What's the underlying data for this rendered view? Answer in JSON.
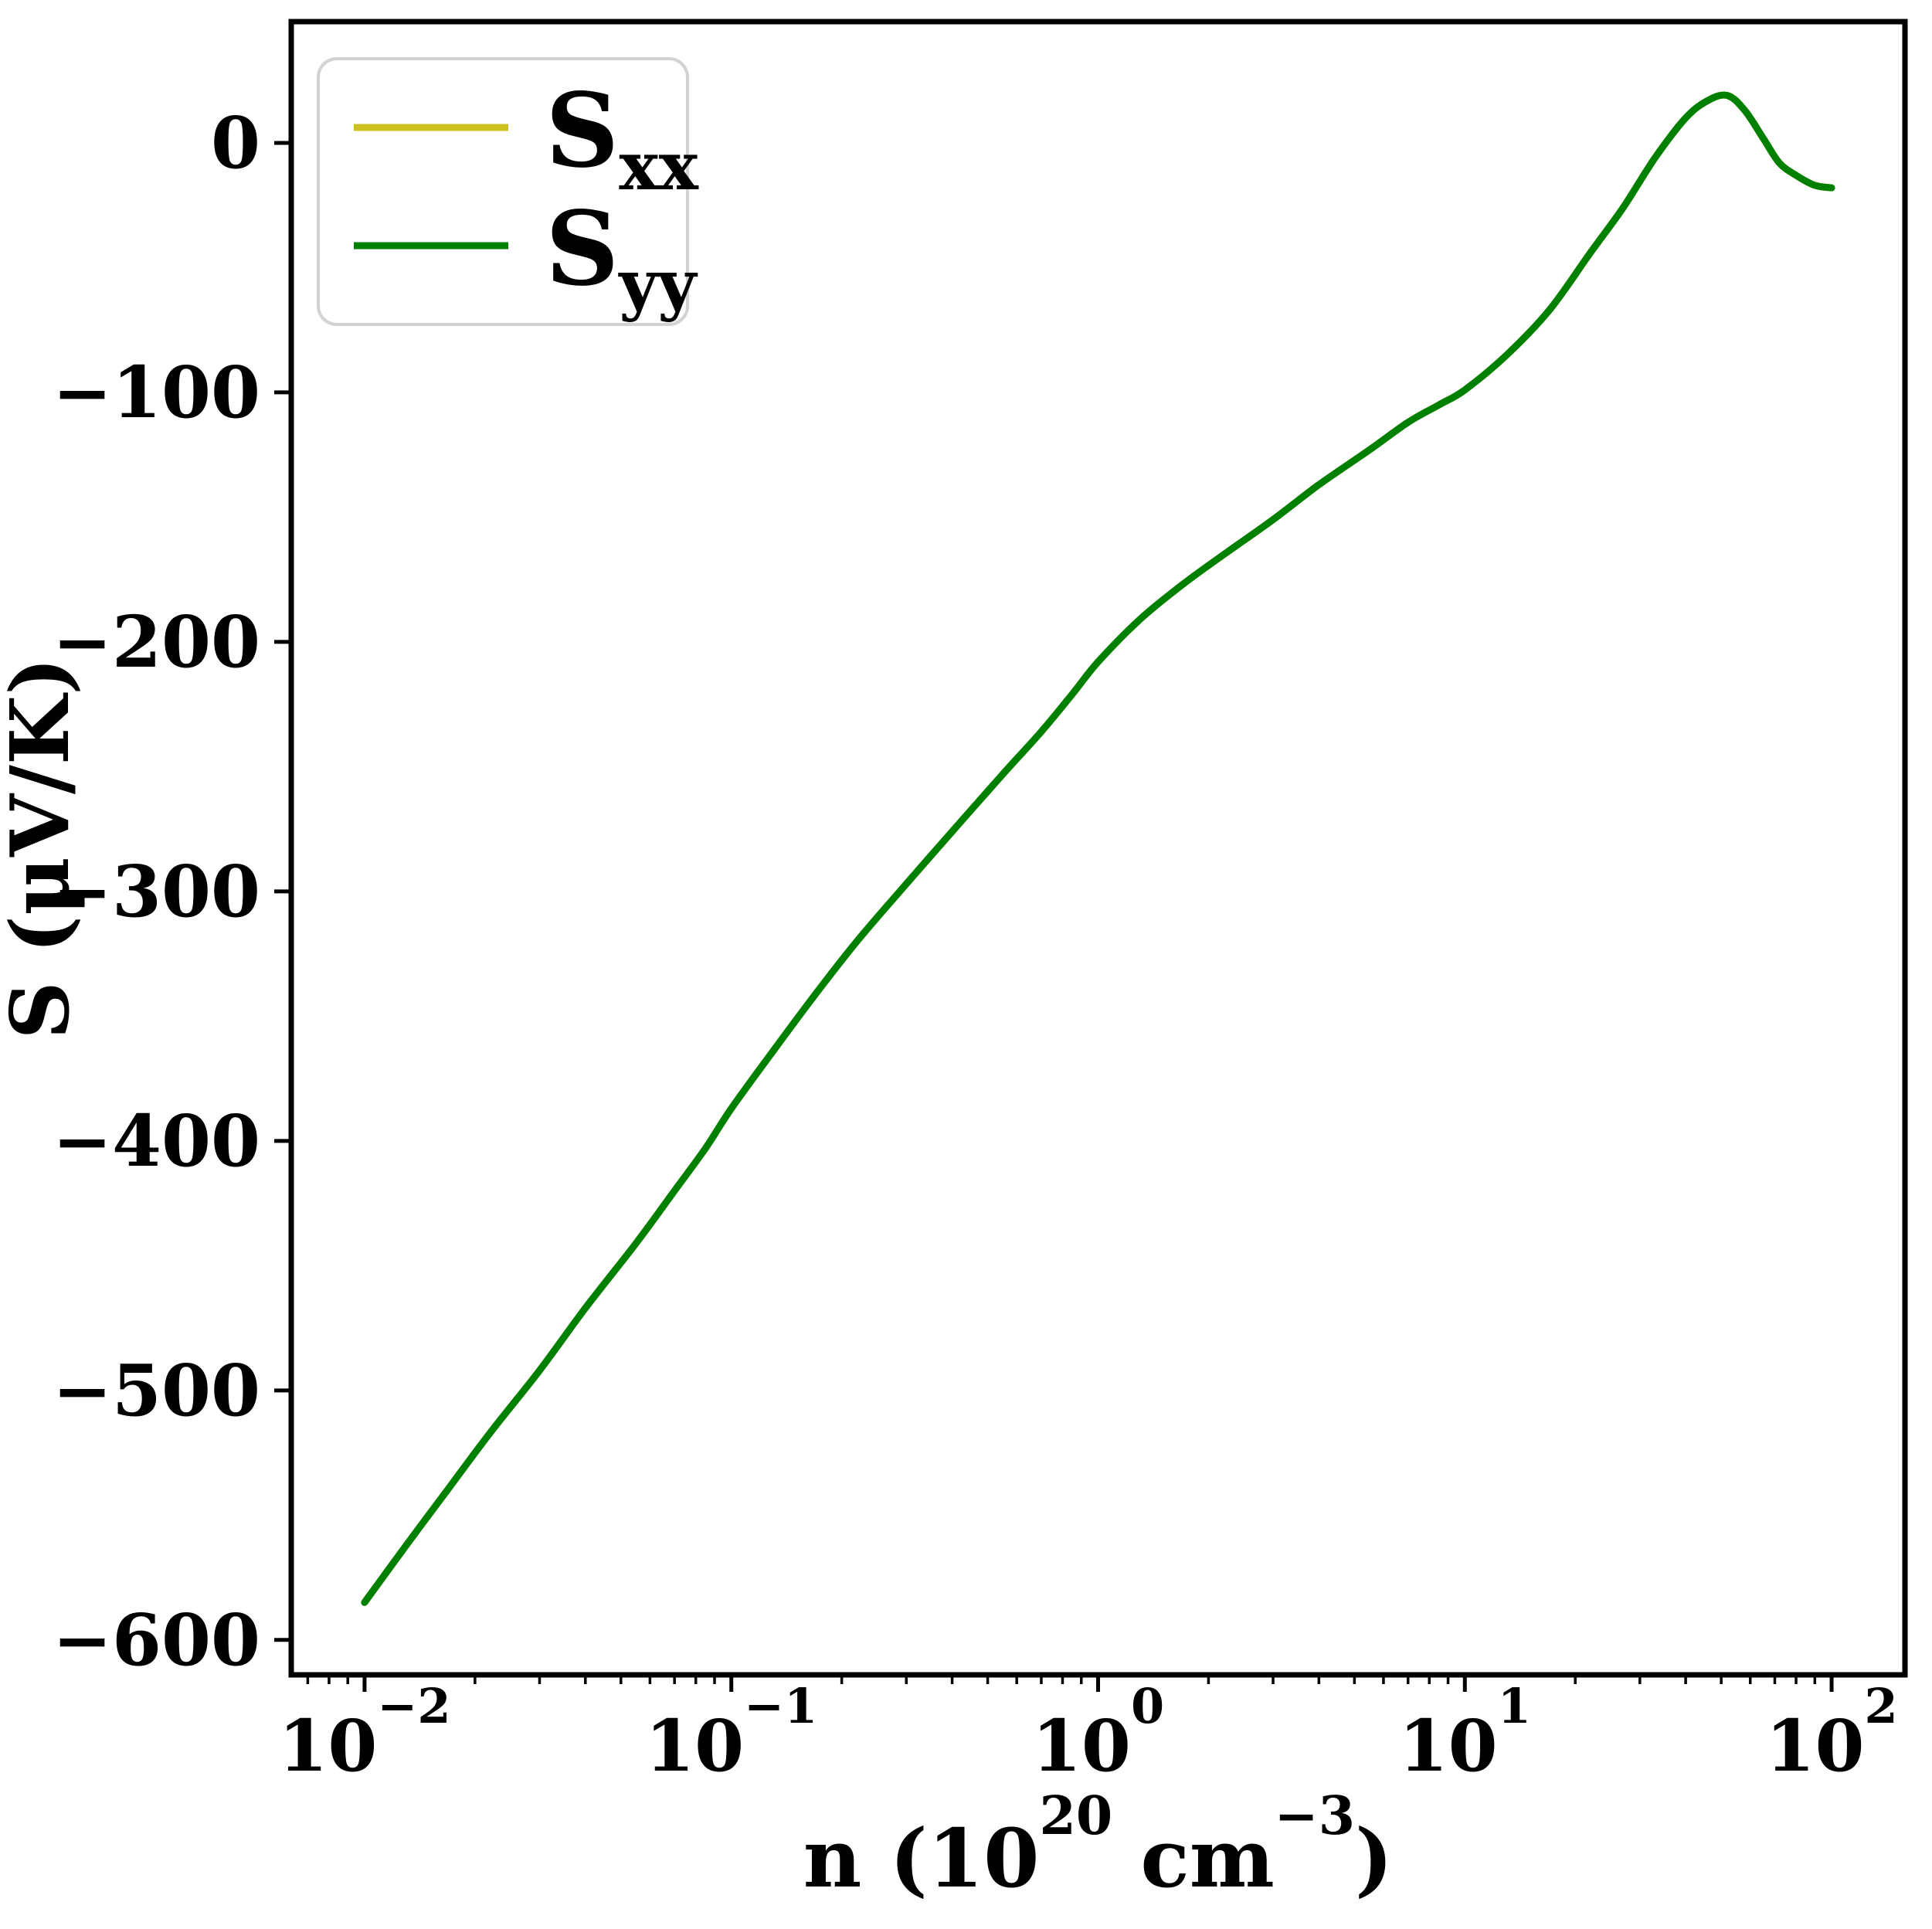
{
  "chart_data": {
    "type": "line",
    "title": "",
    "xscale": "log",
    "ylabel": "S (μV/K)",
    "xlabel_parts": [
      {
        "text": "n (10"
      },
      {
        "sup": "20"
      },
      {
        "text": " cm"
      },
      {
        "sup": "−3"
      },
      {
        "text": ")"
      }
    ],
    "xlim": [
      0.00631,
      158.49
    ],
    "ylim": [
      -614,
      48.6
    ],
    "grid": false,
    "axis_color": "#000000",
    "x_major_ticks": [
      {
        "value": 0.01,
        "mantissa": "10",
        "exponent": "−2"
      },
      {
        "value": 0.1,
        "mantissa": "10",
        "exponent": "−1"
      },
      {
        "value": 1,
        "mantissa": "10",
        "exponent": "0"
      },
      {
        "value": 10,
        "mantissa": "10",
        "exponent": "1"
      },
      {
        "value": 100,
        "mantissa": "10",
        "exponent": "2"
      }
    ],
    "x_minor_ticks": [
      0.007,
      0.008,
      0.009,
      0.02,
      0.03,
      0.04,
      0.05,
      0.06,
      0.07,
      0.08,
      0.09,
      0.2,
      0.3,
      0.4,
      0.5,
      0.6,
      0.7,
      0.8,
      0.9,
      2,
      3,
      4,
      5,
      6,
      7,
      8,
      9,
      20,
      30,
      40,
      50,
      60,
      70,
      80,
      90
    ],
    "y_ticks": [
      {
        "value": 0,
        "label": "0"
      },
      {
        "value": -100,
        "label": "−100"
      },
      {
        "value": -200,
        "label": "−200"
      },
      {
        "value": -300,
        "label": "−300"
      },
      {
        "value": -400,
        "label": "−400"
      },
      {
        "value": -500,
        "label": "−500"
      },
      {
        "value": -600,
        "label": "−600"
      }
    ],
    "legend": {
      "position": "upper left",
      "border_color": "#d2d2d2",
      "background": "#ffffff"
    },
    "series": [
      {
        "name": "S_xx",
        "label_main": "S",
        "label_sub": "xx",
        "color": "#cfc11c",
        "points": [
          [
            0.01,
            -585
          ],
          [
            0.013,
            -562
          ],
          [
            0.017,
            -539
          ],
          [
            0.022,
            -517
          ],
          [
            0.03,
            -492
          ],
          [
            0.04,
            -467
          ],
          [
            0.055,
            -441
          ],
          [
            0.07,
            -420
          ],
          [
            0.085,
            -403
          ],
          [
            0.1,
            -387
          ],
          [
            0.13,
            -364
          ],
          [
            0.17,
            -341
          ],
          [
            0.22,
            -320
          ],
          [
            0.3,
            -297
          ],
          [
            0.4,
            -276
          ],
          [
            0.55,
            -253
          ],
          [
            0.7,
            -236
          ],
          [
            0.85,
            -221
          ],
          [
            1.0,
            -208
          ],
          [
            1.3,
            -191
          ],
          [
            1.7,
            -177
          ],
          [
            2.2,
            -165
          ],
          [
            3.0,
            -151
          ],
          [
            4.0,
            -137
          ],
          [
            5.5,
            -123
          ],
          [
            7.0,
            -112
          ],
          [
            8.5,
            -105
          ],
          [
            10.0,
            -99
          ],
          [
            13.0,
            -85
          ],
          [
            17.0,
            -67
          ],
          [
            22.0,
            -44
          ],
          [
            27.0,
            -26
          ],
          [
            33.0,
            -6
          ],
          [
            40.0,
            10
          ],
          [
            46.0,
            17
          ],
          [
            52.0,
            19
          ],
          [
            58.0,
            13
          ],
          [
            65.0,
            2
          ],
          [
            72.0,
            -8
          ],
          [
            80.0,
            -13
          ],
          [
            90.0,
            -17
          ],
          [
            100.0,
            -18
          ]
        ]
      },
      {
        "name": "S_yy",
        "label_main": "S",
        "label_sub": "yy",
        "color": "#008000",
        "points": [
          [
            0.01,
            -585
          ],
          [
            0.013,
            -562
          ],
          [
            0.017,
            -539
          ],
          [
            0.022,
            -517
          ],
          [
            0.03,
            -492
          ],
          [
            0.04,
            -467
          ],
          [
            0.055,
            -441
          ],
          [
            0.07,
            -420
          ],
          [
            0.085,
            -403
          ],
          [
            0.1,
            -387
          ],
          [
            0.13,
            -364
          ],
          [
            0.17,
            -341
          ],
          [
            0.22,
            -320
          ],
          [
            0.3,
            -297
          ],
          [
            0.4,
            -276
          ],
          [
            0.55,
            -253
          ],
          [
            0.7,
            -236
          ],
          [
            0.85,
            -221
          ],
          [
            1.0,
            -208
          ],
          [
            1.3,
            -191
          ],
          [
            1.7,
            -177
          ],
          [
            2.2,
            -165
          ],
          [
            3.0,
            -151
          ],
          [
            4.0,
            -137
          ],
          [
            5.5,
            -123
          ],
          [
            7.0,
            -112
          ],
          [
            8.5,
            -105
          ],
          [
            10.0,
            -99
          ],
          [
            13.0,
            -85
          ],
          [
            17.0,
            -67
          ],
          [
            22.0,
            -44
          ],
          [
            27.0,
            -26
          ],
          [
            33.0,
            -6
          ],
          [
            40.0,
            10
          ],
          [
            46.0,
            17
          ],
          [
            52.0,
            19
          ],
          [
            58.0,
            13
          ],
          [
            65.0,
            2
          ],
          [
            72.0,
            -8
          ],
          [
            80.0,
            -13
          ],
          [
            90.0,
            -17
          ],
          [
            100.0,
            -18
          ]
        ]
      }
    ]
  }
}
